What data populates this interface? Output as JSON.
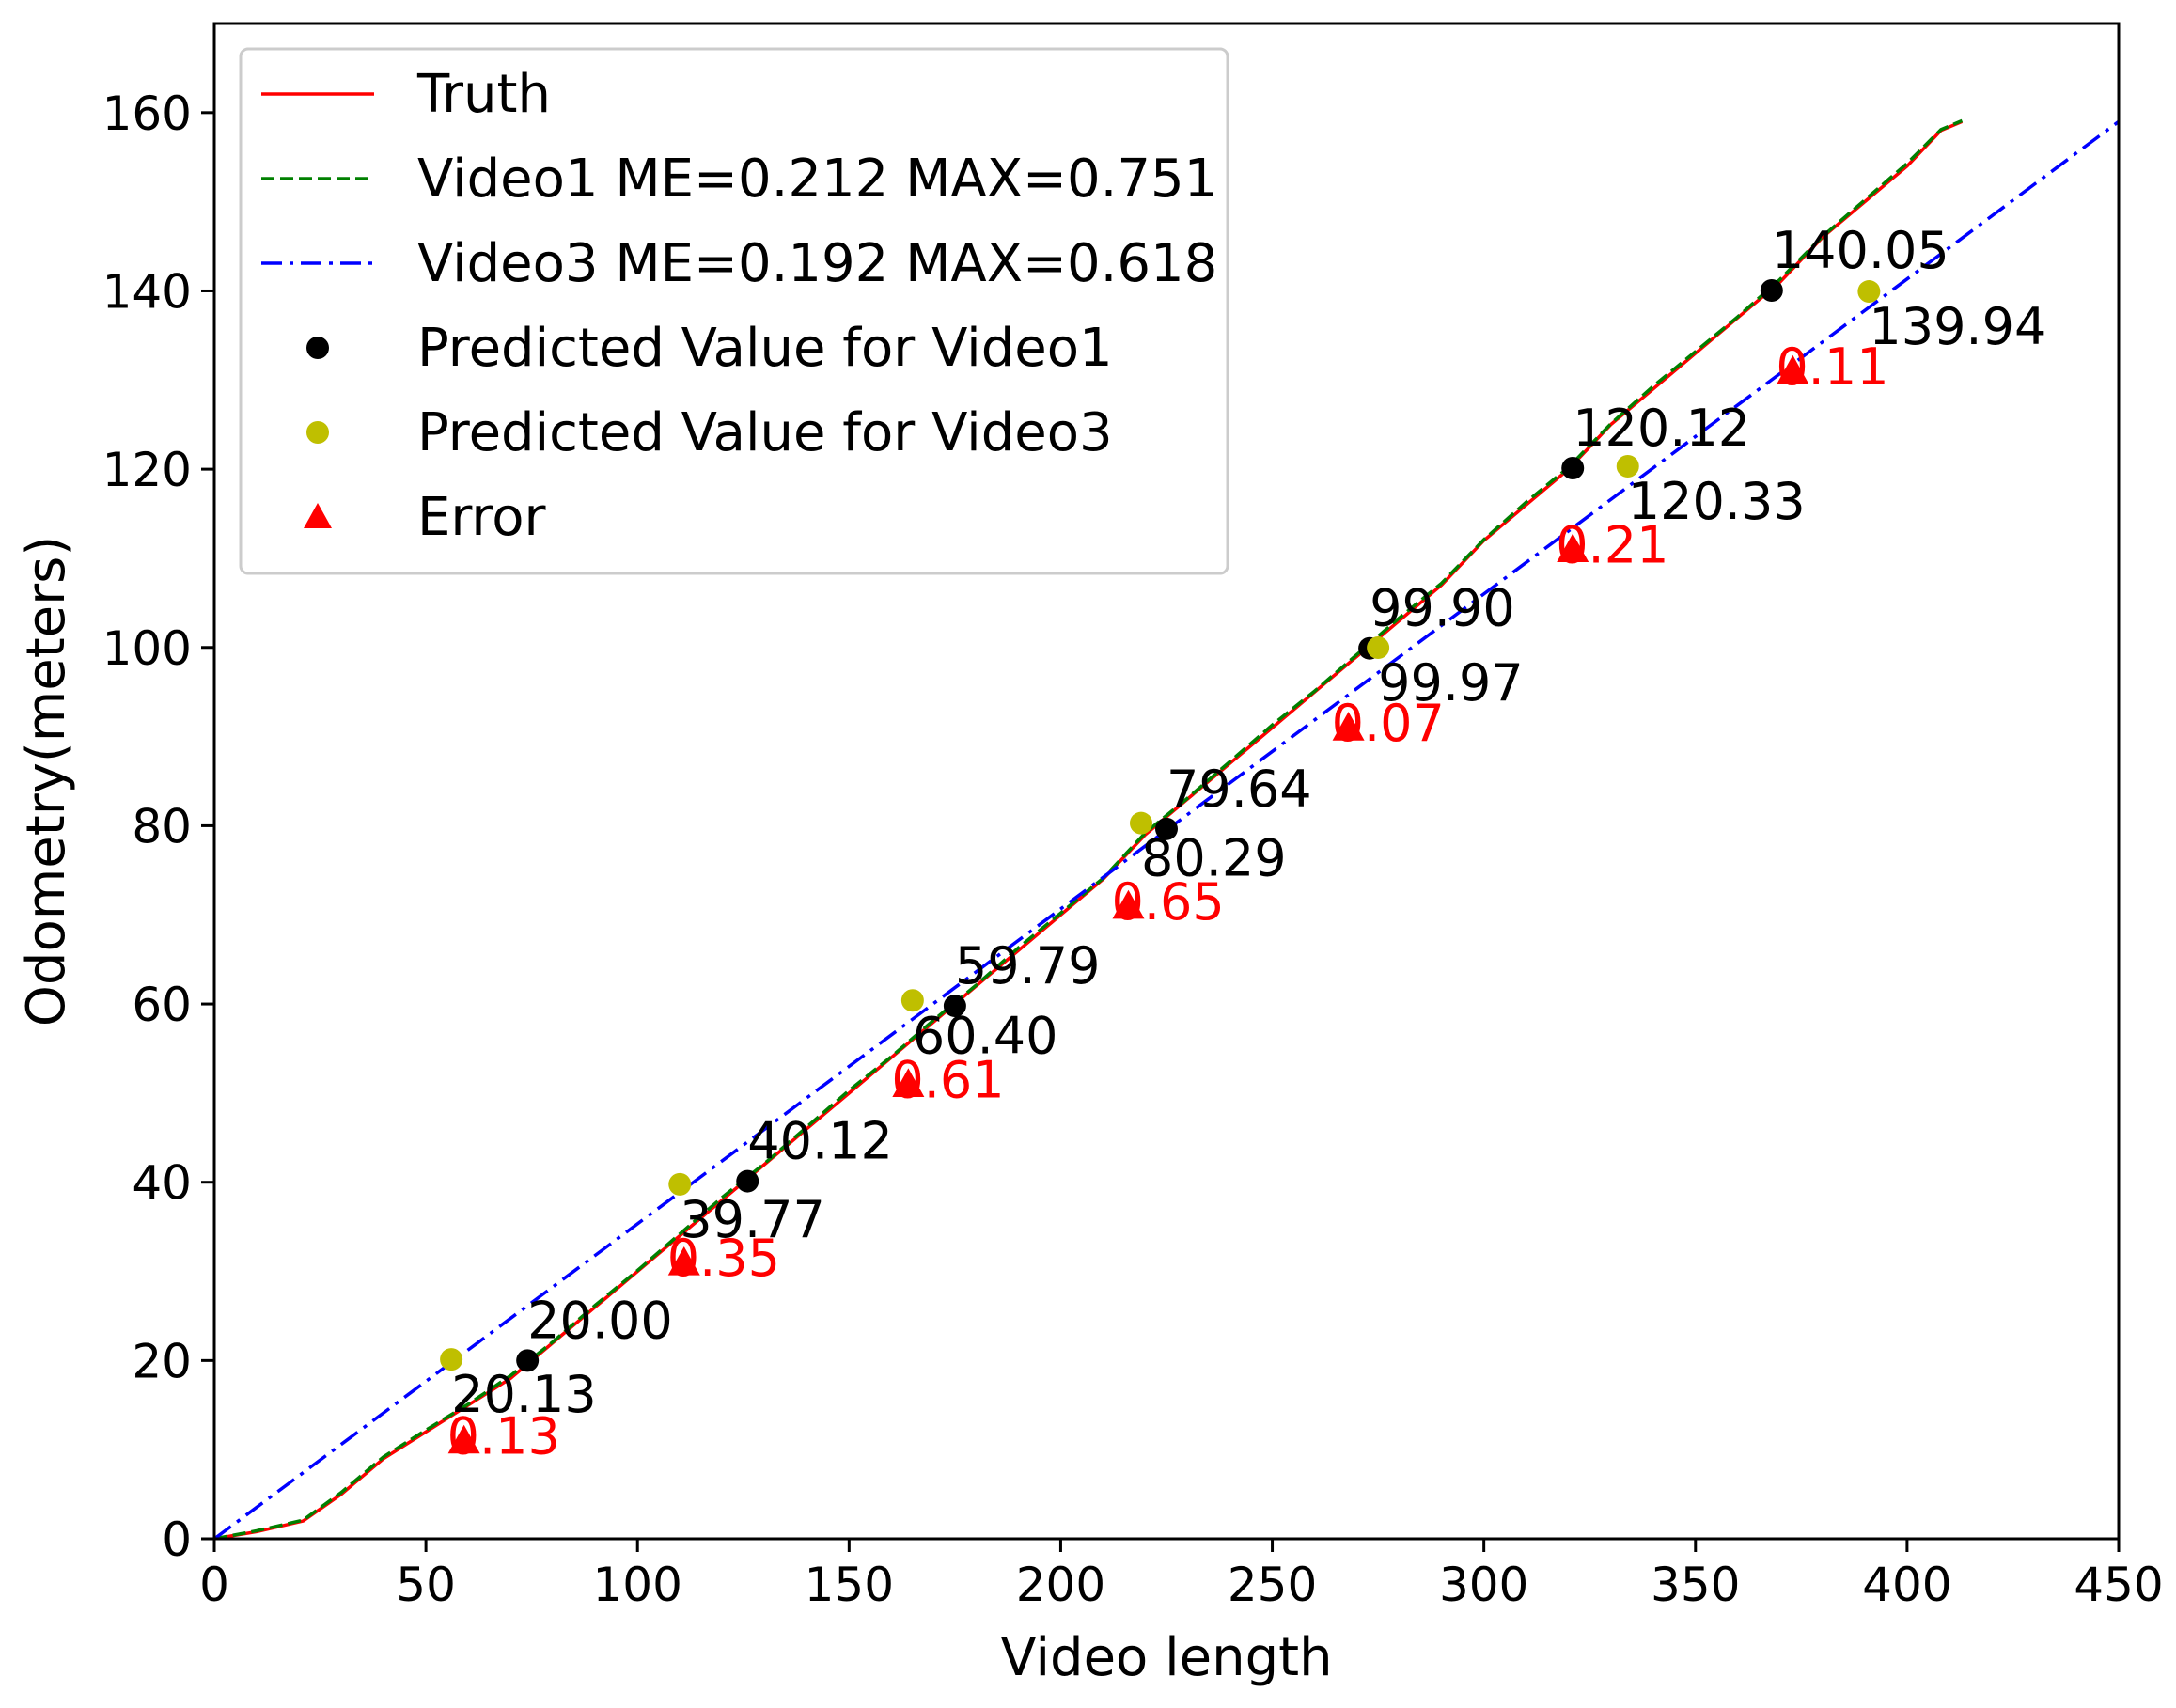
{
  "chart_data": {
    "type": "line",
    "xlabel": "Video length",
    "ylabel": "Odometry(meters)",
    "xlim": [
      0,
      450
    ],
    "ylim": [
      0,
      170
    ],
    "xticks": [
      0,
      50,
      100,
      150,
      200,
      250,
      300,
      350,
      400,
      450
    ],
    "yticks": [
      0,
      20,
      40,
      60,
      80,
      100,
      120,
      140,
      160
    ],
    "grid": false,
    "legend_position": "top-left",
    "series": [
      {
        "name": "Truth",
        "style": "solid",
        "color": "#ff0000",
        "x": [
          0,
          10,
          21,
          30,
          40,
          50,
          60,
          70,
          80,
          90,
          100,
          110,
          120,
          130,
          140,
          150,
          160,
          170,
          180,
          190,
          200,
          210,
          220,
          230,
          240,
          250,
          260,
          270,
          280,
          290,
          300,
          310,
          320,
          330,
          340,
          350,
          360,
          370,
          380,
          390,
          400,
          408,
          413
        ],
        "y": [
          0,
          0.8,
          2,
          5,
          9,
          12,
          15,
          18,
          22,
          26,
          30,
          34,
          38,
          42,
          46,
          50,
          54,
          58,
          62,
          66,
          70,
          74,
          79,
          83,
          87,
          91,
          95,
          99,
          103,
          107,
          112,
          116,
          120,
          125,
          129,
          133,
          137,
          141,
          146,
          150,
          154,
          158,
          159
        ]
      },
      {
        "name": "Video1 ME=0.212 MAX=0.751",
        "style": "dashed",
        "color": "#008000",
        "x": [
          0,
          10,
          21,
          30,
          40,
          50,
          60,
          70,
          80,
          90,
          100,
          110,
          120,
          130,
          140,
          150,
          160,
          170,
          180,
          190,
          200,
          210,
          220,
          230,
          240,
          250,
          260,
          270,
          280,
          290,
          300,
          310,
          320,
          330,
          340,
          350,
          360,
          370,
          380,
          390,
          400,
          408,
          413
        ],
        "y": [
          0,
          0.9,
          2.1,
          5.2,
          9.2,
          12.2,
          15.1,
          18.3,
          22.1,
          26.2,
          30.1,
          34.2,
          38.3,
          42.1,
          46.2,
          50.3,
          54.1,
          58.2,
          62.1,
          66.3,
          70.2,
          74.1,
          79.2,
          83.1,
          87.2,
          91.3,
          95.1,
          99.2,
          103.3,
          107.2,
          112.1,
          116.3,
          120.2,
          125.1,
          129.3,
          133.2,
          137.1,
          141.3,
          146.1,
          150.2,
          154.3,
          158.1,
          159.1
        ]
      },
      {
        "name": "Video3 ME=0.192 MAX=0.618",
        "style": "dashdot",
        "color": "#0000ff",
        "x": [
          0,
          450
        ],
        "y": [
          0,
          159
        ]
      }
    ],
    "point_series": [
      {
        "name": "Predicted Value for Video1",
        "color": "#000000",
        "marker": "circle",
        "x": [
          74,
          126,
          175,
          225,
          273,
          321,
          368
        ],
        "y": [
          20.0,
          40.12,
          59.79,
          79.64,
          99.9,
          120.12,
          140.05
        ]
      },
      {
        "name": "Predicted Value for Video3",
        "color": "#bfbf00",
        "marker": "circle",
        "x": [
          56,
          110,
          165,
          219,
          275,
          334,
          391
        ],
        "y": [
          20.13,
          39.77,
          60.4,
          80.29,
          99.97,
          120.33,
          139.94
        ]
      },
      {
        "name": "Error",
        "color": "#ff0000",
        "marker": "triangle",
        "x": [
          59,
          111,
          164,
          216,
          268,
          321,
          373
        ],
        "y": [
          11,
          31,
          51,
          71,
          91,
          111,
          131
        ],
        "values": [
          0.13,
          0.35,
          0.61,
          0.65,
          0.07,
          0.21,
          0.11
        ]
      }
    ],
    "annotations": {
      "video1_labels": [
        "20.00",
        "40.12",
        "59.79",
        "79.64",
        "99.90",
        "120.12",
        "140.05"
      ],
      "video3_labels": [
        "20.13",
        "39.77",
        "60.40",
        "80.29",
        "99.97",
        "120.33",
        "139.94"
      ],
      "error_labels": [
        "0.13",
        "0.35",
        "0.61",
        "0.65",
        "0.07",
        "0.21",
        "0.11"
      ]
    }
  }
}
